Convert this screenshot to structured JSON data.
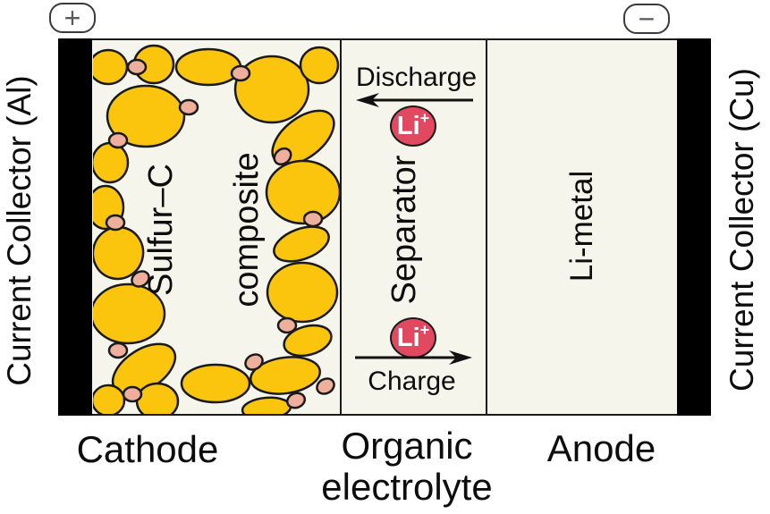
{
  "terminals": {
    "positive": "+",
    "negative": "−"
  },
  "collectors": {
    "left": "Current Collector (Al)",
    "right": "Current Collector (Cu)"
  },
  "electrodes": {
    "cathode": {
      "caption": "Cathode",
      "composite_line1": "Sulfur–C",
      "composite_line2": "composite"
    },
    "anode": {
      "caption": "Anode",
      "material": "Li-metal"
    }
  },
  "electrolyte": {
    "caption_line1": "Organic",
    "caption_line2": "electrolyte",
    "separator": "Separator"
  },
  "ion": {
    "symbol": "Li",
    "sign": "+"
  },
  "processes": {
    "discharge": "Discharge",
    "charge": "Charge"
  },
  "colors": {
    "sulfur": "#FBC40D",
    "binder": "#EFAF9D",
    "ion_fill": "#E0495F",
    "outline": "#1A1A1A",
    "cell_bg": "#F5F5EC",
    "collector_bar": "#000000"
  },
  "particles": {
    "sulfur": [
      [
        17,
        30,
        21,
        19,
        0
      ],
      [
        68,
        27,
        22,
        21,
        0
      ],
      [
        129,
        30,
        36,
        20,
        0
      ],
      [
        200,
        55,
        41,
        37,
        0
      ],
      [
        253,
        28,
        21,
        20,
        0
      ],
      [
        59,
        85,
        43,
        34,
        0
      ],
      [
        19,
        137,
        20,
        22,
        0
      ],
      [
        235,
        109,
        40,
        22,
        -38
      ],
      [
        235,
        170,
        41,
        35,
        0
      ],
      [
        14,
        187,
        20,
        24,
        0
      ],
      [
        28,
        238,
        28,
        29,
        15
      ],
      [
        39,
        306,
        41,
        33,
        0
      ],
      [
        233,
        228,
        32,
        17,
        -20
      ],
      [
        234,
        282,
        39,
        33,
        0
      ],
      [
        240,
        336,
        27,
        16,
        -15
      ],
      [
        57,
        368,
        39,
        22,
        -33
      ],
      [
        17,
        403,
        18,
        17,
        0
      ],
      [
        72,
        404,
        23,
        20,
        0
      ],
      [
        137,
        384,
        38,
        21,
        0
      ],
      [
        215,
        375,
        39,
        20,
        -8
      ],
      [
        194,
        412,
        27,
        12,
        -5
      ]
    ],
    "binder": [
      [
        49,
        30,
        10,
        8,
        0
      ],
      [
        165,
        37,
        10,
        8,
        0
      ],
      [
        107,
        75,
        10,
        8,
        0
      ],
      [
        28,
        112,
        10,
        8,
        0
      ],
      [
        212,
        130,
        10,
        8,
        -40
      ],
      [
        246,
        200,
        10,
        8,
        0
      ],
      [
        25,
        204,
        10,
        8,
        0
      ],
      [
        53,
        267,
        10,
        8,
        -30
      ],
      [
        28,
        347,
        10,
        8,
        0
      ],
      [
        44,
        396,
        10,
        8,
        0
      ],
      [
        180,
        360,
        10,
        8,
        -30
      ],
      [
        260,
        387,
        10,
        8,
        -30
      ],
      [
        227,
        403,
        10,
        8,
        -20
      ],
      [
        217,
        319,
        10,
        8,
        0
      ]
    ]
  }
}
